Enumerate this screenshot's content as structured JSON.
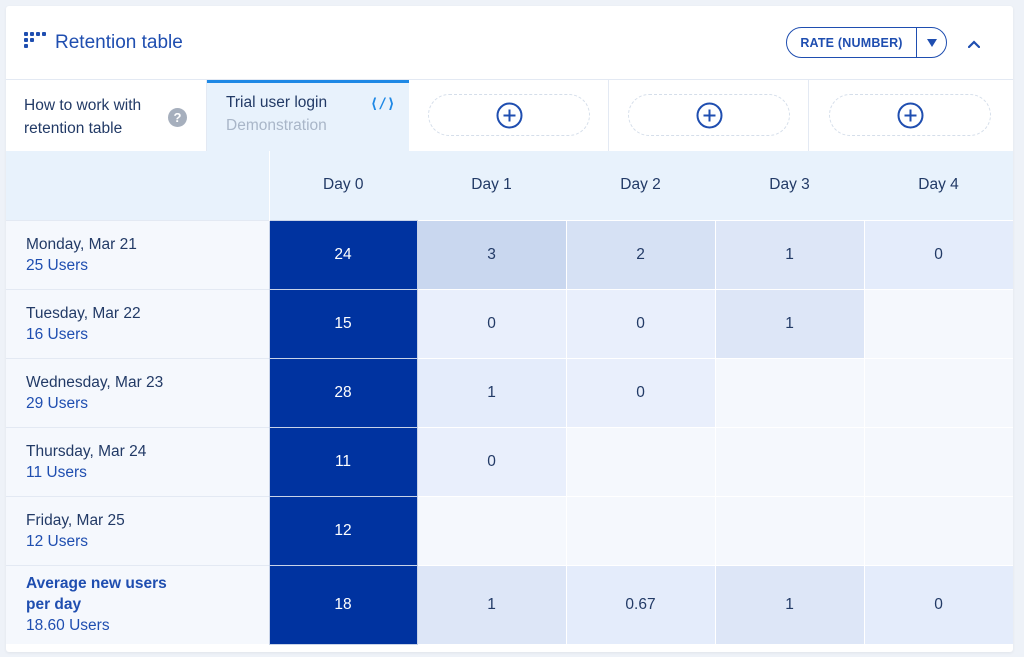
{
  "header": {
    "title": "Retention table",
    "icon": "grid-dots-icon",
    "rate_label": "RATE (NUMBER)",
    "accent": "#1f4eb0"
  },
  "tabs": {
    "help_label": "How to work with retention table",
    "active_name": "Trial user login",
    "active_sub": "Demonstration",
    "code_glyph": "⟨/⟩",
    "add_slots": 3
  },
  "table": {
    "columns": [
      "Day 0",
      "Day 1",
      "Day 2",
      "Day 3",
      "Day 4"
    ],
    "rows": [
      {
        "date": "Monday, Mar 21",
        "users": "25 Users",
        "cells": [
          "24",
          "3",
          "2",
          "1",
          "0"
        ]
      },
      {
        "date": "Tuesday, Mar 22",
        "users": "16 Users",
        "cells": [
          "15",
          "0",
          "0",
          "1",
          ""
        ]
      },
      {
        "date": "Wednesday, Mar 23",
        "users": "29 Users",
        "cells": [
          "28",
          "1",
          "0",
          "",
          ""
        ]
      },
      {
        "date": "Thursday, Mar 24",
        "users": "11 Users",
        "cells": [
          "11",
          "0",
          "",
          "",
          ""
        ]
      },
      {
        "date": "Friday, Mar 25",
        "users": "12 Users",
        "cells": [
          "12",
          "",
          "",
          "",
          ""
        ]
      }
    ],
    "average": {
      "label_line1": "Average new users",
      "label_line2": "per day",
      "users": "18.60 Users",
      "cells": [
        "18",
        "1",
        "0.67",
        "1",
        "0"
      ]
    }
  }
}
